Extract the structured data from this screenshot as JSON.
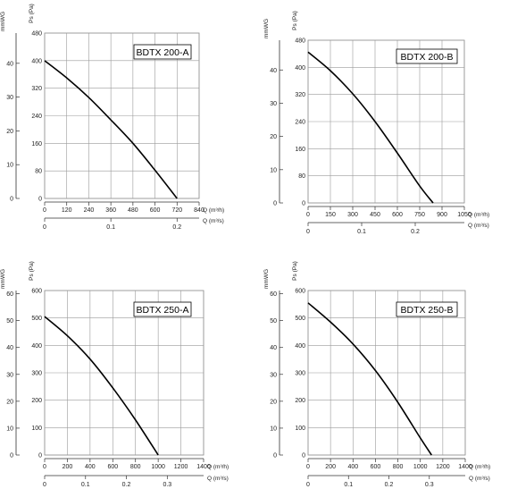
{
  "chart_data": [
    {
      "type": "line",
      "title": "BDTX 200-A",
      "xlabel": "Q (m³/h)",
      "x2label": "Q (m³/s)",
      "ylabel": "Ps (Pa)",
      "y2label": "mmWG",
      "xlim": [
        0,
        840
      ],
      "ylim": [
        0,
        480
      ],
      "x_ticks": [
        0,
        120,
        240,
        360,
        480,
        600,
        720,
        840
      ],
      "y_ticks": [
        0,
        80,
        160,
        240,
        320,
        400,
        480
      ],
      "x2_ticks": [
        0,
        0.1,
        0.2
      ],
      "x2_tick_labels": [
        "0",
        "0.1",
        "0.2"
      ],
      "y2_ticks": [
        0,
        10,
        20,
        30,
        40
      ],
      "grid": true,
      "series": [
        {
          "x": [
            0,
            120,
            240,
            360,
            480,
            600,
            720
          ],
          "y": [
            400,
            350,
            293,
            228,
            160,
            82,
            0
          ]
        }
      ]
    },
    {
      "type": "line",
      "title": "BDTX 200-B",
      "xlabel": "Q (m³/h)",
      "x2label": "Q (m³/s)",
      "ylabel": "Ps (Pa)",
      "y2label": "mmWG",
      "xlim": [
        0,
        1050
      ],
      "ylim": [
        0,
        480
      ],
      "x_ticks": [
        0,
        150,
        300,
        450,
        600,
        750,
        900,
        1050
      ],
      "y_ticks": [
        0,
        80,
        160,
        240,
        320,
        400,
        480
      ],
      "x2_ticks": [
        0,
        0.1,
        0.2
      ],
      "x2_tick_labels": [
        "0",
        "0.1",
        "0.2"
      ],
      "y2_ticks": [
        0,
        10,
        20,
        30,
        40
      ],
      "grid": true,
      "series": [
        {
          "x": [
            0,
            150,
            300,
            450,
            600,
            750,
            840
          ],
          "y": [
            445,
            390,
            322,
            240,
            147,
            50,
            0
          ]
        }
      ]
    },
    {
      "type": "line",
      "title": "BDTX 250-A",
      "xlabel": "Q (m³/h)",
      "x2label": "Q (m³/s)",
      "ylabel": "Ps (Pa)",
      "y2label": "mmWG",
      "xlim": [
        0,
        1400
      ],
      "ylim": [
        0,
        600
      ],
      "x_ticks": [
        0,
        200,
        400,
        600,
        800,
        1000,
        1200,
        1400
      ],
      "y_ticks": [
        0,
        100,
        200,
        300,
        400,
        500,
        600
      ],
      "x2_ticks": [
        0,
        0.1,
        0.2,
        0.3
      ],
      "x2_tick_labels": [
        "0",
        "0.1",
        "0.2",
        "0.3"
      ],
      "y2_ticks": [
        0,
        10,
        20,
        30,
        40,
        50,
        60
      ],
      "grid": true,
      "series": [
        {
          "x": [
            0,
            200,
            400,
            600,
            800,
            1000
          ],
          "y": [
            505,
            435,
            350,
            245,
            128,
            0
          ]
        }
      ]
    },
    {
      "type": "line",
      "title": "BDTX 250-B",
      "xlabel": "Q (m³/h)",
      "x2label": "Q (m³/s)",
      "ylabel": "Ps (Pa)",
      "y2label": "mmWG",
      "xlim": [
        0,
        1400
      ],
      "ylim": [
        0,
        600
      ],
      "x_ticks": [
        0,
        200,
        400,
        600,
        800,
        1000,
        1200,
        1400
      ],
      "y_ticks": [
        0,
        100,
        200,
        300,
        400,
        500,
        600
      ],
      "x2_ticks": [
        0,
        0.1,
        0.2,
        0.3
      ],
      "x2_tick_labels": [
        "0",
        "0.1",
        "0.2",
        "0.3"
      ],
      "y2_ticks": [
        0,
        10,
        20,
        30,
        40,
        50,
        60
      ],
      "grid": true,
      "series": [
        {
          "x": [
            0,
            200,
            400,
            600,
            800,
            1000,
            1100
          ],
          "y": [
            555,
            485,
            405,
            308,
            192,
            62,
            0
          ]
        }
      ]
    }
  ]
}
